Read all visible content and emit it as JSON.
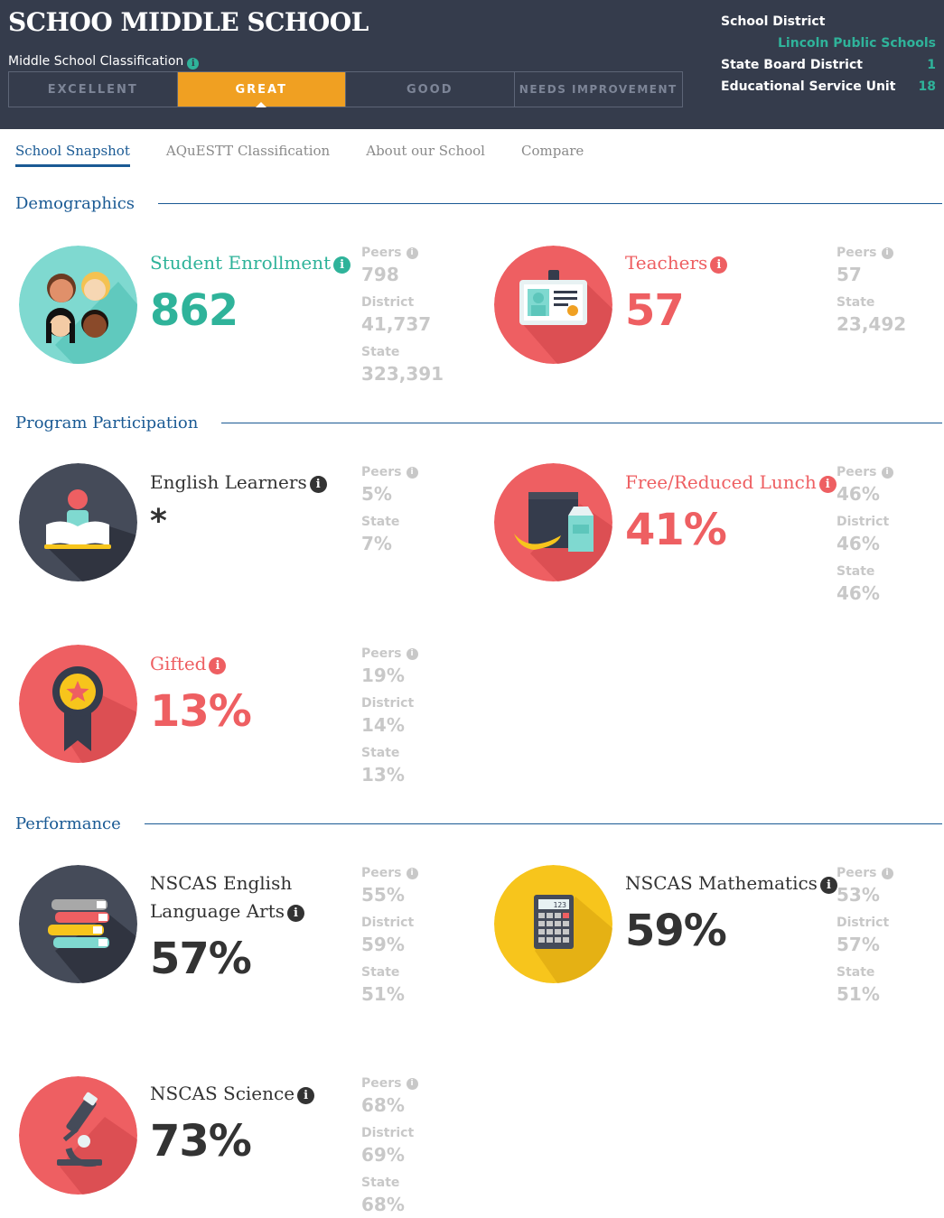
{
  "header": {
    "school_name": "SCHOO MIDDLE SCHOOL",
    "classification_label": "Middle School Classification",
    "ratings": [
      "EXCELLENT",
      "GREAT",
      "GOOD",
      "NEEDS IMPROVEMENT"
    ],
    "active_rating": "GREAT",
    "school_district_label": "School District",
    "school_district_value": "Lincoln Public Schools",
    "state_board_label": "State Board District",
    "state_board_value": "1",
    "esu_label": "Educational Service Unit",
    "esu_value": "18"
  },
  "tabs": [
    "School Snapshot",
    "AQuESTT Classification",
    "About our School",
    "Compare"
  ],
  "sections": {
    "demographics": "Demographics",
    "program": "Program Participation",
    "performance": "Performance"
  },
  "stats": {
    "enrollment": {
      "label": "Student Enrollment",
      "value": "862",
      "compare": [
        {
          "label": "Peers",
          "value": "798"
        },
        {
          "label": "District",
          "value": "41,737"
        },
        {
          "label": "State",
          "value": "323,391"
        }
      ]
    },
    "teachers": {
      "label": "Teachers",
      "value": "57",
      "compare": [
        {
          "label": "Peers",
          "value": "57"
        },
        {
          "label": "State",
          "value": "23,492"
        }
      ]
    },
    "english_learners": {
      "label": "English Learners",
      "value": "*",
      "compare": [
        {
          "label": "Peers",
          "value": "5%"
        },
        {
          "label": "State",
          "value": "7%"
        }
      ]
    },
    "lunch": {
      "label": "Free/Reduced Lunch",
      "value": "41%",
      "compare": [
        {
          "label": "Peers",
          "value": "46%"
        },
        {
          "label": "District",
          "value": "46%"
        },
        {
          "label": "State",
          "value": "46%"
        }
      ]
    },
    "gifted": {
      "label": "Gifted",
      "value": "13%",
      "compare": [
        {
          "label": "Peers",
          "value": "19%"
        },
        {
          "label": "District",
          "value": "14%"
        },
        {
          "label": "State",
          "value": "13%"
        }
      ]
    },
    "ela": {
      "label_line1": "NSCAS English",
      "label_line2": "Language Arts",
      "value": "57%",
      "compare": [
        {
          "label": "Peers",
          "value": "55%"
        },
        {
          "label": "District",
          "value": "59%"
        },
        {
          "label": "State",
          "value": "51%"
        }
      ]
    },
    "math": {
      "label": "NSCAS Mathematics",
      "value": "59%",
      "calc_display": "123",
      "compare": [
        {
          "label": "Peers",
          "value": "53%"
        },
        {
          "label": "District",
          "value": "57%"
        },
        {
          "label": "State",
          "value": "51%"
        }
      ]
    },
    "science": {
      "label": "NSCAS Science",
      "value": "73%",
      "compare": [
        {
          "label": "Peers",
          "value": "68%"
        },
        {
          "label": "District",
          "value": "69%"
        },
        {
          "label": "State",
          "value": "68%"
        }
      ]
    }
  },
  "icons": {
    "info": "i",
    "enrollment": "students-faces-icon",
    "teachers": "id-badge-icon",
    "english_learners": "reading-book-icon",
    "lunch": "lunch-bag-icon",
    "gifted": "award-ribbon-icon",
    "ela": "books-stack-icon",
    "math": "calculator-icon",
    "science": "microscope-icon"
  },
  "colors": {
    "header_bg": "#353c4c",
    "accent_orange": "#f0a022",
    "teal": "#2fb39a",
    "red": "#ee5f62",
    "navy": "#1a5a94",
    "yellow": "#f7c51c",
    "muted": "#c8c8c8"
  }
}
